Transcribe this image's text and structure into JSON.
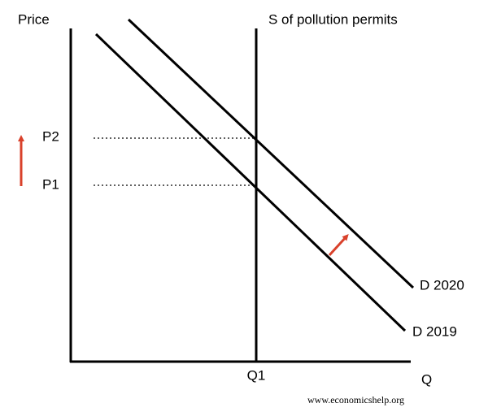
{
  "axes": {
    "y_label": "Price",
    "x_label": "Q"
  },
  "supply": {
    "label": "S of pollution permits"
  },
  "demand": [
    {
      "label": "D 2019"
    },
    {
      "label": "D 2020"
    }
  ],
  "prices": [
    "P1",
    "P2"
  ],
  "quantity": "Q1",
  "watermark": "www.economicshelp.org"
}
